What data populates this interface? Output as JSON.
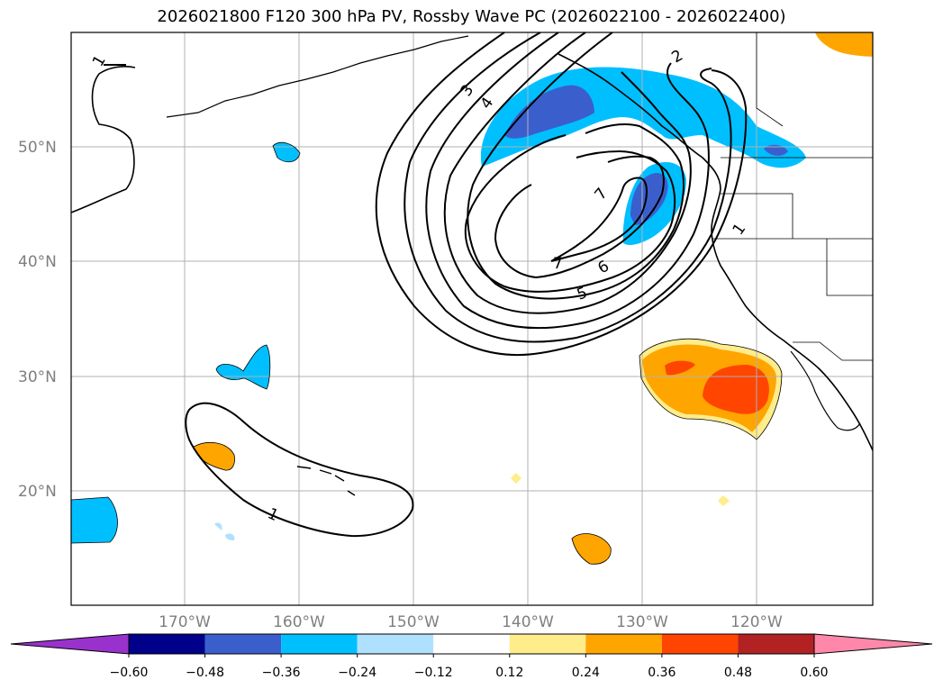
{
  "title": "2026021800 F120 300 hPa PV, Rossby Wave PC (2026022100 - 2026022400)",
  "map": {
    "latitude_labels": [
      "50°N",
      "40°N",
      "30°N",
      "20°N"
    ],
    "longitude_labels": [
      "170°W",
      "160°W",
      "150°W",
      "140°W",
      "130°W",
      "120°W"
    ],
    "contour_labels": [
      "1",
      "2",
      "3",
      "4",
      "5",
      "6",
      "7",
      "7",
      "1",
      "1"
    ]
  },
  "colorbar": {
    "labels": [
      "−0.60",
      "−0.48",
      "−0.36",
      "−0.24",
      "−0.12",
      "0.12",
      "0.24",
      "0.36",
      "0.48",
      "0.60"
    ],
    "colors": [
      "#9932cc",
      "#00008b",
      "#3a5fcd",
      "#00bfff",
      "#afe1ff",
      "#ffffff",
      "#ffec8b",
      "#ffa500",
      "#ff4500",
      "#b22222",
      "#ff88aa"
    ]
  }
}
